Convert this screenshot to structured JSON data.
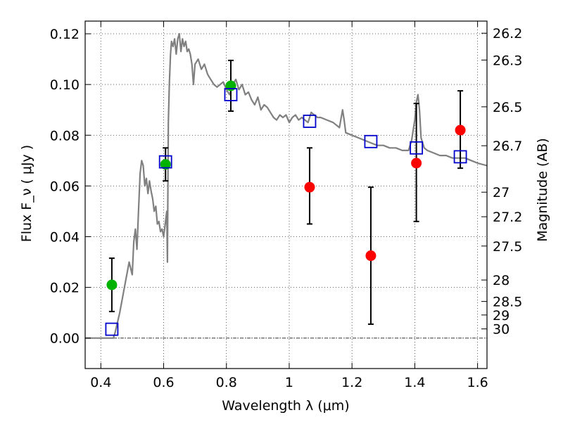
{
  "chart_data": {
    "type": "scatter",
    "xlabel": "Wavelength  λ (μm)",
    "ylabel_left": "Flux  F_ν  ( μJy )",
    "ylabel_right": "Magnitude (AB)",
    "xlim": [
      0.35,
      1.63
    ],
    "ylim": [
      -0.012,
      0.125
    ],
    "grid": true,
    "x_ticks": [
      {
        "value": 0.4,
        "label": "0.4"
      },
      {
        "value": 0.6,
        "label": "0.6"
      },
      {
        "value": 0.8,
        "label": "0.8"
      },
      {
        "value": 1.0,
        "label": "1"
      },
      {
        "value": 1.2,
        "label": "1.2"
      },
      {
        "value": 1.4,
        "label": "1.4"
      },
      {
        "value": 1.6,
        "label": "1.6"
      }
    ],
    "y_ticks": [
      {
        "value": 0.0,
        "label": "0.00"
      },
      {
        "value": 0.02,
        "label": "0.02"
      },
      {
        "value": 0.04,
        "label": "0.04"
      },
      {
        "value": 0.06,
        "label": "0.06"
      },
      {
        "value": 0.08,
        "label": "0.08"
      },
      {
        "value": 0.1,
        "label": "0.10"
      },
      {
        "value": 0.12,
        "label": "0.12"
      }
    ],
    "mag_ticks": [
      {
        "value": 26.2,
        "label": "26.2"
      },
      {
        "value": 26.3,
        "label": "26.3"
      },
      {
        "value": 26.5,
        "label": "26.5"
      },
      {
        "value": 26.7,
        "label": "26.7"
      },
      {
        "value": 27,
        "label": "27"
      },
      {
        "value": 27.2,
        "label": "27.2"
      },
      {
        "value": 27.5,
        "label": "27.5"
      },
      {
        "value": 28,
        "label": "28"
      },
      {
        "value": 28.5,
        "label": "28.5"
      },
      {
        "value": 29,
        "label": "29"
      },
      {
        "value": 30,
        "label": "30"
      }
    ],
    "series": [
      {
        "role": "detected",
        "marker": "circle",
        "color": "#00b200",
        "points": [
          {
            "x": 0.435,
            "y": 0.021,
            "yerr": [
              0.0105,
              0.0315
            ]
          },
          {
            "x": 0.606,
            "y": 0.0685,
            "yerr": [
              0.062,
              0.075
            ]
          },
          {
            "x": 0.814,
            "y": 0.0995,
            "yerr": [
              0.0895,
              0.1095
            ]
          }
        ]
      },
      {
        "role": "undetected",
        "marker": "circle",
        "color": "#ff0000",
        "points": [
          {
            "x": 1.065,
            "y": 0.0595,
            "yerr": [
              0.045,
              0.075
            ]
          },
          {
            "x": 1.26,
            "y": 0.0325,
            "yerr": [
              0.0055,
              0.0595
            ]
          },
          {
            "x": 1.405,
            "y": 0.069,
            "yerr": [
              0.046,
              0.0925
            ]
          },
          {
            "x": 1.545,
            "y": 0.082,
            "yerr": [
              0.067,
              0.0975
            ]
          }
        ]
      },
      {
        "role": "model-photometry",
        "marker": "square",
        "color": "#0000cc",
        "points": [
          {
            "x": 0.435,
            "y": 0.0035
          },
          {
            "x": 0.606,
            "y": 0.0695
          },
          {
            "x": 0.814,
            "y": 0.096
          },
          {
            "x": 1.065,
            "y": 0.0855
          },
          {
            "x": 1.26,
            "y": 0.0775
          },
          {
            "x": 1.405,
            "y": 0.075
          },
          {
            "x": 1.545,
            "y": 0.0715
          }
        ]
      }
    ],
    "model_spectrum": {
      "color": "#808080",
      "x": [
        0.35,
        0.44,
        0.445,
        0.46,
        0.475,
        0.49,
        0.5,
        0.505,
        0.51,
        0.515,
        0.52,
        0.525,
        0.53,
        0.535,
        0.54,
        0.545,
        0.55,
        0.555,
        0.56,
        0.565,
        0.57,
        0.575,
        0.58,
        0.585,
        0.59,
        0.595,
        0.6,
        0.605,
        0.61,
        0.612,
        0.615,
        0.618,
        0.622,
        0.625,
        0.63,
        0.635,
        0.64,
        0.645,
        0.65,
        0.655,
        0.66,
        0.665,
        0.67,
        0.675,
        0.68,
        0.685,
        0.69,
        0.695,
        0.7,
        0.71,
        0.72,
        0.73,
        0.74,
        0.75,
        0.76,
        0.77,
        0.78,
        0.79,
        0.8,
        0.81,
        0.82,
        0.83,
        0.84,
        0.85,
        0.86,
        0.87,
        0.88,
        0.89,
        0.9,
        0.91,
        0.92,
        0.93,
        0.94,
        0.95,
        0.96,
        0.97,
        0.98,
        0.99,
        1.0,
        1.01,
        1.02,
        1.03,
        1.04,
        1.05,
        1.06,
        1.07,
        1.08,
        1.09,
        1.1,
        1.12,
        1.14,
        1.16,
        1.17,
        1.175,
        1.18,
        1.2,
        1.22,
        1.24,
        1.26,
        1.28,
        1.3,
        1.32,
        1.34,
        1.36,
        1.38,
        1.39,
        1.4,
        1.405,
        1.41,
        1.415,
        1.42,
        1.43,
        1.44,
        1.46,
        1.48,
        1.5,
        1.52,
        1.54,
        1.56,
        1.58,
        1.6,
        1.63
      ],
      "y": [
        0.0,
        0.0,
        0.002,
        0.01,
        0.02,
        0.03,
        0.025,
        0.038,
        0.043,
        0.035,
        0.05,
        0.065,
        0.07,
        0.068,
        0.06,
        0.063,
        0.057,
        0.062,
        0.058,
        0.055,
        0.05,
        0.052,
        0.045,
        0.046,
        0.042,
        0.043,
        0.04,
        0.045,
        0.05,
        0.03,
        0.085,
        0.1,
        0.112,
        0.117,
        0.115,
        0.118,
        0.112,
        0.118,
        0.12,
        0.113,
        0.118,
        0.115,
        0.117,
        0.113,
        0.114,
        0.112,
        0.108,
        0.1,
        0.108,
        0.11,
        0.106,
        0.108,
        0.104,
        0.102,
        0.1,
        0.099,
        0.1,
        0.101,
        0.098,
        0.096,
        0.1,
        0.102,
        0.098,
        0.1,
        0.096,
        0.097,
        0.094,
        0.092,
        0.095,
        0.09,
        0.092,
        0.091,
        0.089,
        0.087,
        0.086,
        0.088,
        0.087,
        0.088,
        0.085,
        0.087,
        0.088,
        0.086,
        0.087,
        0.086,
        0.085,
        0.089,
        0.088,
        0.087,
        0.087,
        0.086,
        0.085,
        0.083,
        0.09,
        0.086,
        0.081,
        0.08,
        0.079,
        0.078,
        0.077,
        0.076,
        0.076,
        0.075,
        0.075,
        0.074,
        0.074,
        0.078,
        0.086,
        0.093,
        0.096,
        0.09,
        0.079,
        0.075,
        0.074,
        0.073,
        0.072,
        0.072,
        0.071,
        0.071,
        0.071,
        0.07,
        0.069,
        0.068
      ]
    }
  }
}
